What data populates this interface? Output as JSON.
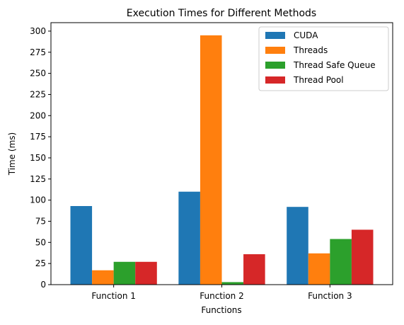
{
  "chart_data": {
    "type": "bar",
    "title": "Execution Times for Different Methods",
    "xlabel": "Functions",
    "ylabel": "Time (ms)",
    "categories": [
      "Function 1",
      "Function 2",
      "Function 3"
    ],
    "series": [
      {
        "name": "CUDA",
        "color": "#1f77b4",
        "values": [
          93,
          110,
          92
        ]
      },
      {
        "name": "Threads",
        "color": "#ff7f0e",
        "values": [
          17,
          295,
          37
        ]
      },
      {
        "name": "Thread Safe Queue",
        "color": "#2ca02c",
        "values": [
          27,
          3,
          54
        ]
      },
      {
        "name": "Thread Pool",
        "color": "#d62728",
        "values": [
          27,
          36,
          65
        ]
      }
    ],
    "ylim": [
      0,
      310
    ],
    "yticks": [
      0,
      25,
      50,
      75,
      100,
      125,
      150,
      175,
      200,
      225,
      250,
      275,
      300
    ],
    "grid": false,
    "legend_position": "top-right"
  }
}
